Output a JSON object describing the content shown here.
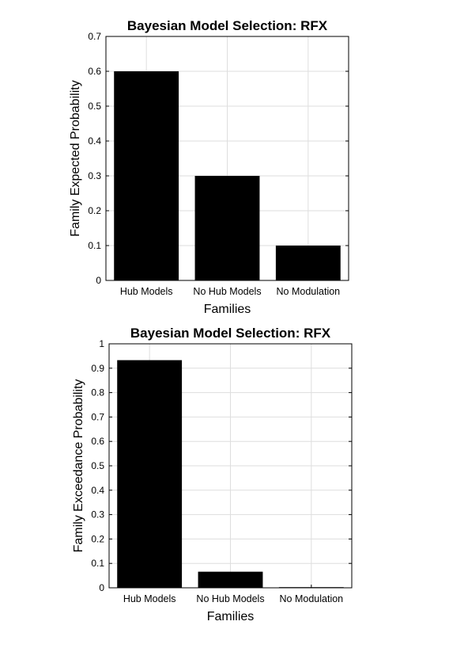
{
  "chart_data": [
    {
      "type": "bar",
      "title": "Bayesian Model Selection: RFX",
      "xlabel": "Families",
      "ylabel": "Family Expected Probability",
      "categories": [
        "Hub Models",
        "No Hub Models",
        "No Modulation"
      ],
      "values": [
        0.6,
        0.3,
        0.1
      ],
      "ylim": [
        0,
        0.7
      ],
      "yticks": [
        "0",
        "0.1",
        "0.2",
        "0.3",
        "0.4",
        "0.5",
        "0.6",
        "0.7"
      ],
      "bar_color": "#000000",
      "grid": true
    },
    {
      "type": "bar",
      "title": "Bayesian Model Selection: RFX",
      "xlabel": "Families",
      "ylabel": "Family Exceedance Probability",
      "categories": [
        "Hub Models",
        "No Hub Models",
        "No Modulation"
      ],
      "values": [
        0.933,
        0.066,
        0.001
      ],
      "ylim": [
        0,
        1
      ],
      "yticks": [
        "0",
        "0.1",
        "0.2",
        "0.3",
        "0.4",
        "0.5",
        "0.6",
        "0.7",
        "0.8",
        "0.9",
        "1"
      ],
      "bar_color": "#000000",
      "grid": true
    }
  ]
}
